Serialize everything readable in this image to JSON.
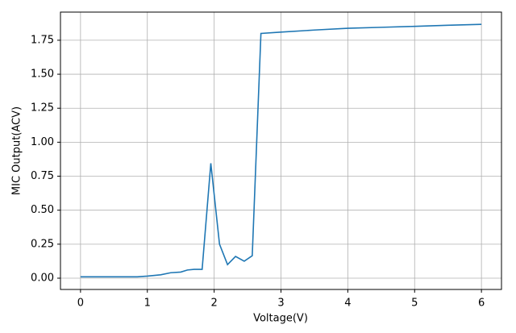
{
  "chart_data": {
    "type": "line",
    "xlabel": "Voltage(V)",
    "ylabel": "MIC Output(ACV)",
    "x": [
      0,
      0.85,
      1.0,
      1.2,
      1.35,
      1.5,
      1.6,
      1.7,
      1.82,
      1.95,
      2.08,
      2.2,
      2.32,
      2.45,
      2.57,
      2.7,
      3.0,
      3.5,
      4.0,
      4.5,
      5.0,
      5.5,
      6.0
    ],
    "series": [
      {
        "color": "#1f77b4",
        "values": [
          0.01,
          0.01,
          0.015,
          0.025,
          0.04,
          0.045,
          0.06,
          0.065,
          0.065,
          0.845,
          0.25,
          0.1,
          0.16,
          0.125,
          0.165,
          1.8,
          1.81,
          1.825,
          1.838,
          1.845,
          1.852,
          1.86,
          1.867
        ]
      }
    ],
    "xlim": [
      -0.3,
      6.3
    ],
    "ylim": [
      -0.083,
      1.957
    ],
    "xticks": [
      0,
      1,
      2,
      3,
      4,
      5,
      6
    ],
    "yticks": [
      {
        "value": 0,
        "label": "0.00"
      },
      {
        "value": 0.25,
        "label": "0.25"
      },
      {
        "value": 0.5,
        "label": "0.50"
      },
      {
        "value": 0.75,
        "label": "0.75"
      },
      {
        "value": 1,
        "label": "1.00"
      },
      {
        "value": 1.25,
        "label": "1.25"
      },
      {
        "value": 1.5,
        "label": "1.50"
      },
      {
        "value": 1.75,
        "label": "1.75"
      }
    ],
    "grid": true
  }
}
